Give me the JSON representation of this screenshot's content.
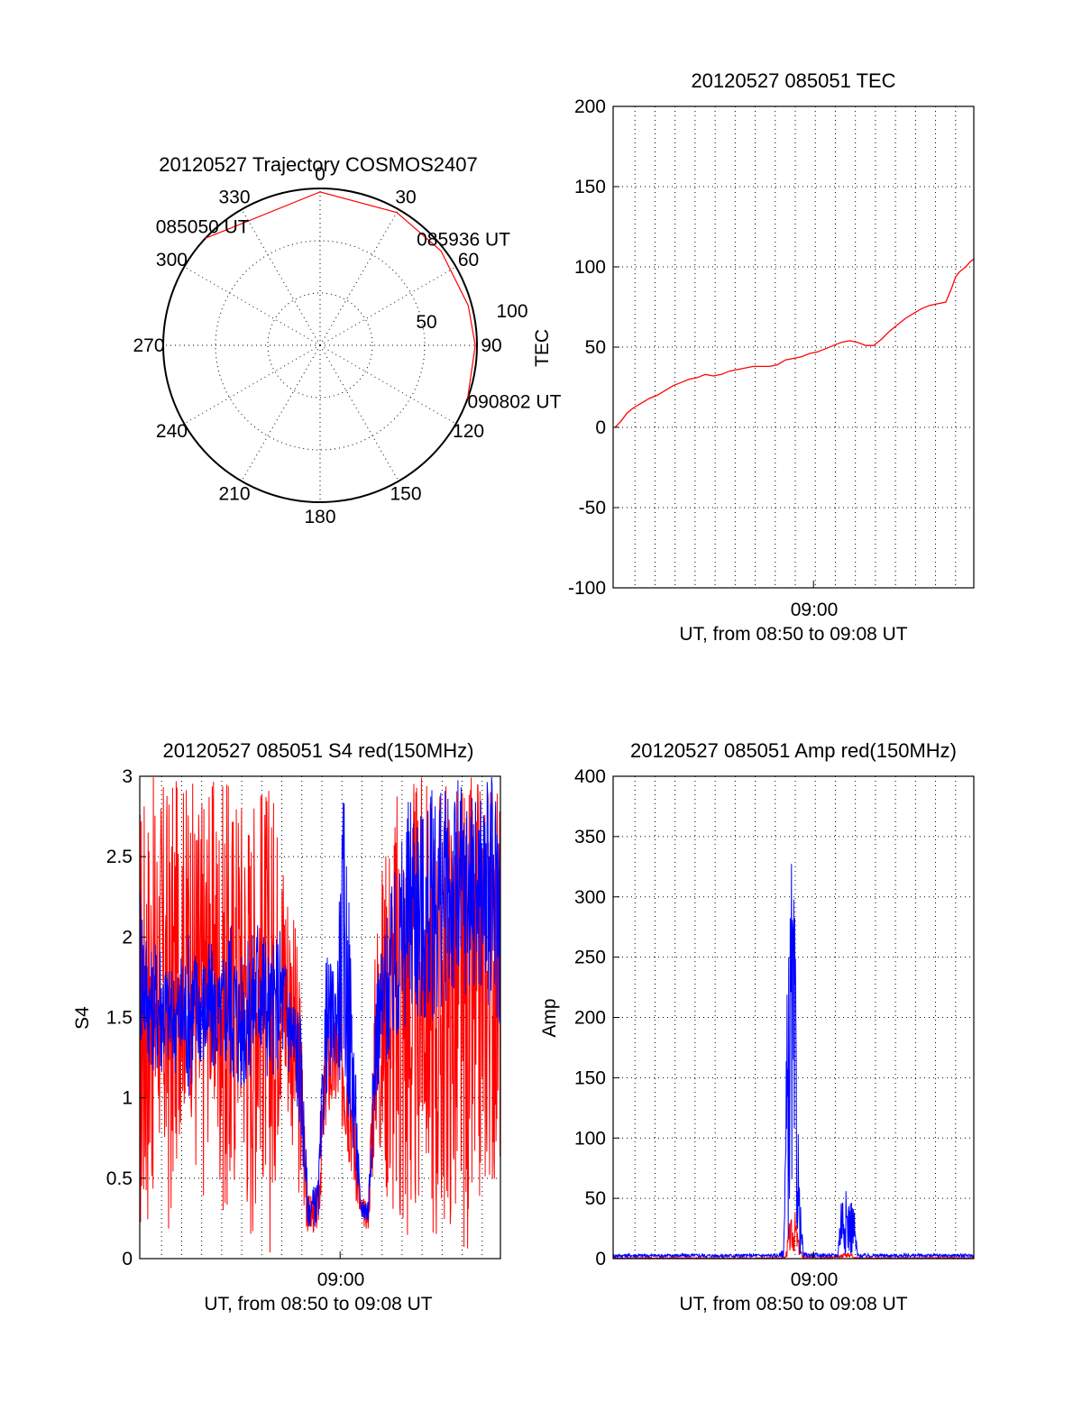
{
  "chart_data": [
    {
      "type": "polar",
      "title": "20120527 Trajectory COSMOS2407",
      "angle_ticks": [
        "0",
        "30",
        "60",
        "90",
        "120",
        "150",
        "180",
        "210",
        "240",
        "270",
        "300",
        "330"
      ],
      "radial_ticks": [
        "50",
        "100"
      ],
      "radial_label": "TEC",
      "trajectory_color": "#ff0000",
      "trajectory": [
        {
          "azimuth": 313,
          "zenith": 90,
          "label": "085050 UT"
        },
        {
          "azimuth": 0,
          "zenith": 88
        },
        {
          "azimuth": 30,
          "zenith": 88
        },
        {
          "azimuth": 52,
          "zenith": 88,
          "label": "085936 UT"
        },
        {
          "azimuth": 75,
          "zenith": 88
        },
        {
          "azimuth": 90,
          "zenith": 89
        },
        {
          "azimuth": 110,
          "zenith": 90,
          "label": "090802 UT"
        }
      ]
    },
    {
      "type": "line",
      "title": "20120527 085051 TEC",
      "ylabel": "",
      "xlabel": "UT, from 08:50 to 09:08 UT",
      "ylim": [
        -100,
        200
      ],
      "yticks": [
        "-100",
        "-50",
        "0",
        "50",
        "100",
        "150",
        "200"
      ],
      "xtick": "09:00",
      "x_minutes_range": [
        0,
        18
      ],
      "x_tick_minute": 10,
      "grid": true,
      "series": [
        {
          "color": "#ff0000",
          "points": [
            [
              0.1,
              0
            ],
            [
              0.4,
              4
            ],
            [
              0.7,
              9
            ],
            [
              1.0,
              12
            ],
            [
              1.4,
              15
            ],
            [
              1.8,
              18
            ],
            [
              2.2,
              20
            ],
            [
              2.6,
              23
            ],
            [
              3.0,
              26
            ],
            [
              3.4,
              28
            ],
            [
              3.8,
              30
            ],
            [
              4.2,
              31
            ],
            [
              4.6,
              33
            ],
            [
              5.0,
              32
            ],
            [
              5.4,
              33
            ],
            [
              5.8,
              35
            ],
            [
              6.2,
              36
            ],
            [
              6.6,
              37
            ],
            [
              7.0,
              38
            ],
            [
              7.4,
              38
            ],
            [
              7.8,
              38
            ],
            [
              8.2,
              39
            ],
            [
              8.6,
              42
            ],
            [
              9.0,
              43
            ],
            [
              9.4,
              44
            ],
            [
              9.8,
              46
            ],
            [
              10.2,
              47
            ],
            [
              10.6,
              49
            ],
            [
              11.0,
              51
            ],
            [
              11.4,
              53
            ],
            [
              11.8,
              54
            ],
            [
              12.2,
              53
            ],
            [
              12.6,
              51
            ],
            [
              13.0,
              51
            ],
            [
              13.4,
              55
            ],
            [
              13.8,
              60
            ],
            [
              14.2,
              64
            ],
            [
              14.6,
              68
            ],
            [
              15.0,
              71
            ],
            [
              15.4,
              74
            ],
            [
              15.8,
              76
            ],
            [
              16.2,
              77
            ],
            [
              16.6,
              78
            ],
            [
              16.9,
              87
            ],
            [
              17.1,
              94
            ],
            [
              17.3,
              97
            ],
            [
              17.6,
              100
            ],
            [
              17.8,
              103
            ],
            [
              18.0,
              105
            ]
          ]
        }
      ]
    },
    {
      "type": "line",
      "title": "20120527 085051 S4 red(150MHz)",
      "ylabel": "S4",
      "xlabel": "UT, from 08:50 to 09:08 UT",
      "ylim": [
        0,
        3
      ],
      "yticks": [
        "0",
        "0.5",
        "1",
        "1.5",
        "2",
        "2.5",
        "3"
      ],
      "xtick": "09:00",
      "x_minutes_range": [
        0,
        18
      ],
      "x_tick_minute": 10,
      "grid": true,
      "series": [
        {
          "color": "#ff0000",
          "band": [
            [
              0.0,
              0.0,
              3.0
            ],
            [
              0.5,
              0.2,
              3.0
            ],
            [
              1.0,
              0.6,
              3.0
            ],
            [
              1.5,
              0.0,
              3.0
            ],
            [
              2.0,
              0.8,
              3.0
            ],
            [
              2.5,
              1.0,
              3.0
            ],
            [
              3.0,
              0.0,
              3.0
            ],
            [
              3.5,
              0.9,
              3.0
            ],
            [
              4.0,
              0.4,
              3.0
            ],
            [
              4.5,
              0.0,
              3.0
            ],
            [
              5.0,
              0.9,
              3.0
            ],
            [
              5.5,
              0.0,
              3.0
            ],
            [
              6.0,
              0.6,
              3.0
            ],
            [
              6.5,
              0.0,
              3.0
            ],
            [
              7.0,
              0.9,
              2.8
            ],
            [
              7.5,
              0.8,
              2.4
            ],
            [
              8.0,
              0.3,
              1.8
            ],
            [
              8.4,
              0.15,
              0.4
            ],
            [
              8.9,
              0.15,
              0.45
            ],
            [
              9.3,
              0.8,
              1.6
            ],
            [
              9.8,
              0.9,
              1.5
            ],
            [
              10.2,
              0.7,
              1.9
            ],
            [
              10.6,
              0.5,
              1.3
            ],
            [
              11.0,
              0.2,
              0.4
            ],
            [
              11.4,
              0.18,
              0.35
            ],
            [
              11.8,
              0.7,
              2.2
            ],
            [
              12.4,
              0.3,
              2.8
            ],
            [
              13.0,
              0.0,
              3.0
            ],
            [
              13.6,
              0.0,
              3.0
            ],
            [
              14.2,
              0.5,
              3.0
            ],
            [
              14.8,
              0.0,
              3.0
            ],
            [
              15.4,
              0.2,
              3.0
            ],
            [
              16.0,
              0.0,
              3.0
            ],
            [
              16.6,
              0.0,
              3.0
            ],
            [
              17.2,
              0.4,
              3.0
            ],
            [
              18.0,
              0.5,
              3.0
            ]
          ]
        },
        {
          "color": "#0000ff",
          "band": [
            [
              0.0,
              1.3,
              2.5
            ],
            [
              0.5,
              1.2,
              1.9
            ],
            [
              1.0,
              1.1,
              2.1
            ],
            [
              1.5,
              1.2,
              1.8
            ],
            [
              2.0,
              1.1,
              1.9
            ],
            [
              2.5,
              1.0,
              2.1
            ],
            [
              3.0,
              1.2,
              1.9
            ],
            [
              3.5,
              1.1,
              2.0
            ],
            [
              4.0,
              1.2,
              1.8
            ],
            [
              4.5,
              1.1,
              2.2
            ],
            [
              5.0,
              1.0,
              1.9
            ],
            [
              5.5,
              1.1,
              2.0
            ],
            [
              6.0,
              1.2,
              2.3
            ],
            [
              6.5,
              1.1,
              1.9
            ],
            [
              7.0,
              1.2,
              2.1
            ],
            [
              7.5,
              1.1,
              1.8
            ],
            [
              8.0,
              0.8,
              1.6
            ],
            [
              8.4,
              0.2,
              0.4
            ],
            [
              8.9,
              0.2,
              0.5
            ],
            [
              9.3,
              1.0,
              1.9
            ],
            [
              9.8,
              1.2,
              1.8
            ],
            [
              10.2,
              1.0,
              3.0
            ],
            [
              10.6,
              0.7,
              1.8
            ],
            [
              11.0,
              0.25,
              0.4
            ],
            [
              11.4,
              0.2,
              0.4
            ],
            [
              11.8,
              1.0,
              1.8
            ],
            [
              12.4,
              1.2,
              2.2
            ],
            [
              13.0,
              1.3,
              2.6
            ],
            [
              13.6,
              1.5,
              3.0
            ],
            [
              14.2,
              1.4,
              2.8
            ],
            [
              14.8,
              1.5,
              3.0
            ],
            [
              15.4,
              1.6,
              2.9
            ],
            [
              16.0,
              1.5,
              3.0
            ],
            [
              16.6,
              1.7,
              2.9
            ],
            [
              17.2,
              1.6,
              3.0
            ],
            [
              18.0,
              1.4,
              3.0
            ]
          ]
        }
      ]
    },
    {
      "type": "line",
      "title": "20120527 085051 Amp red(150MHz)",
      "ylabel": "Amp",
      "xlabel": "UT, from 08:50 to 09:08 UT",
      "ylim": [
        0,
        400
      ],
      "yticks": [
        "0",
        "50",
        "100",
        "150",
        "200",
        "250",
        "300",
        "350",
        "400"
      ],
      "xtick": "09:00",
      "x_minutes_range": [
        0,
        18
      ],
      "x_tick_minute": 10,
      "grid": true,
      "series": [
        {
          "color": "#ff0000",
          "band": [
            [
              0.0,
              0,
              1
            ],
            [
              8.3,
              0,
              1
            ],
            [
              8.6,
              0,
              2
            ],
            [
              8.8,
              3,
              30
            ],
            [
              9.1,
              5,
              40
            ],
            [
              9.3,
              2,
              10
            ],
            [
              9.5,
              0,
              2
            ],
            [
              11.2,
              0,
              2
            ],
            [
              11.5,
              1,
              5
            ],
            [
              11.9,
              1,
              5
            ],
            [
              12.1,
              0,
              1
            ],
            [
              18.0,
              0,
              1
            ]
          ]
        },
        {
          "color": "#0000ff",
          "band": [
            [
              0.0,
              1,
              4
            ],
            [
              8.3,
              1,
              4
            ],
            [
              8.5,
              1,
              10
            ],
            [
              8.7,
              10,
              250
            ],
            [
              8.9,
              40,
              340
            ],
            [
              9.1,
              20,
              270
            ],
            [
              9.3,
              3,
              60
            ],
            [
              9.5,
              1,
              5
            ],
            [
              11.2,
              1,
              4
            ],
            [
              11.4,
              5,
              65
            ],
            [
              11.7,
              3,
              55
            ],
            [
              12.0,
              2,
              50
            ],
            [
              12.2,
              1,
              4
            ],
            [
              18.0,
              1,
              4
            ]
          ]
        }
      ]
    }
  ]
}
